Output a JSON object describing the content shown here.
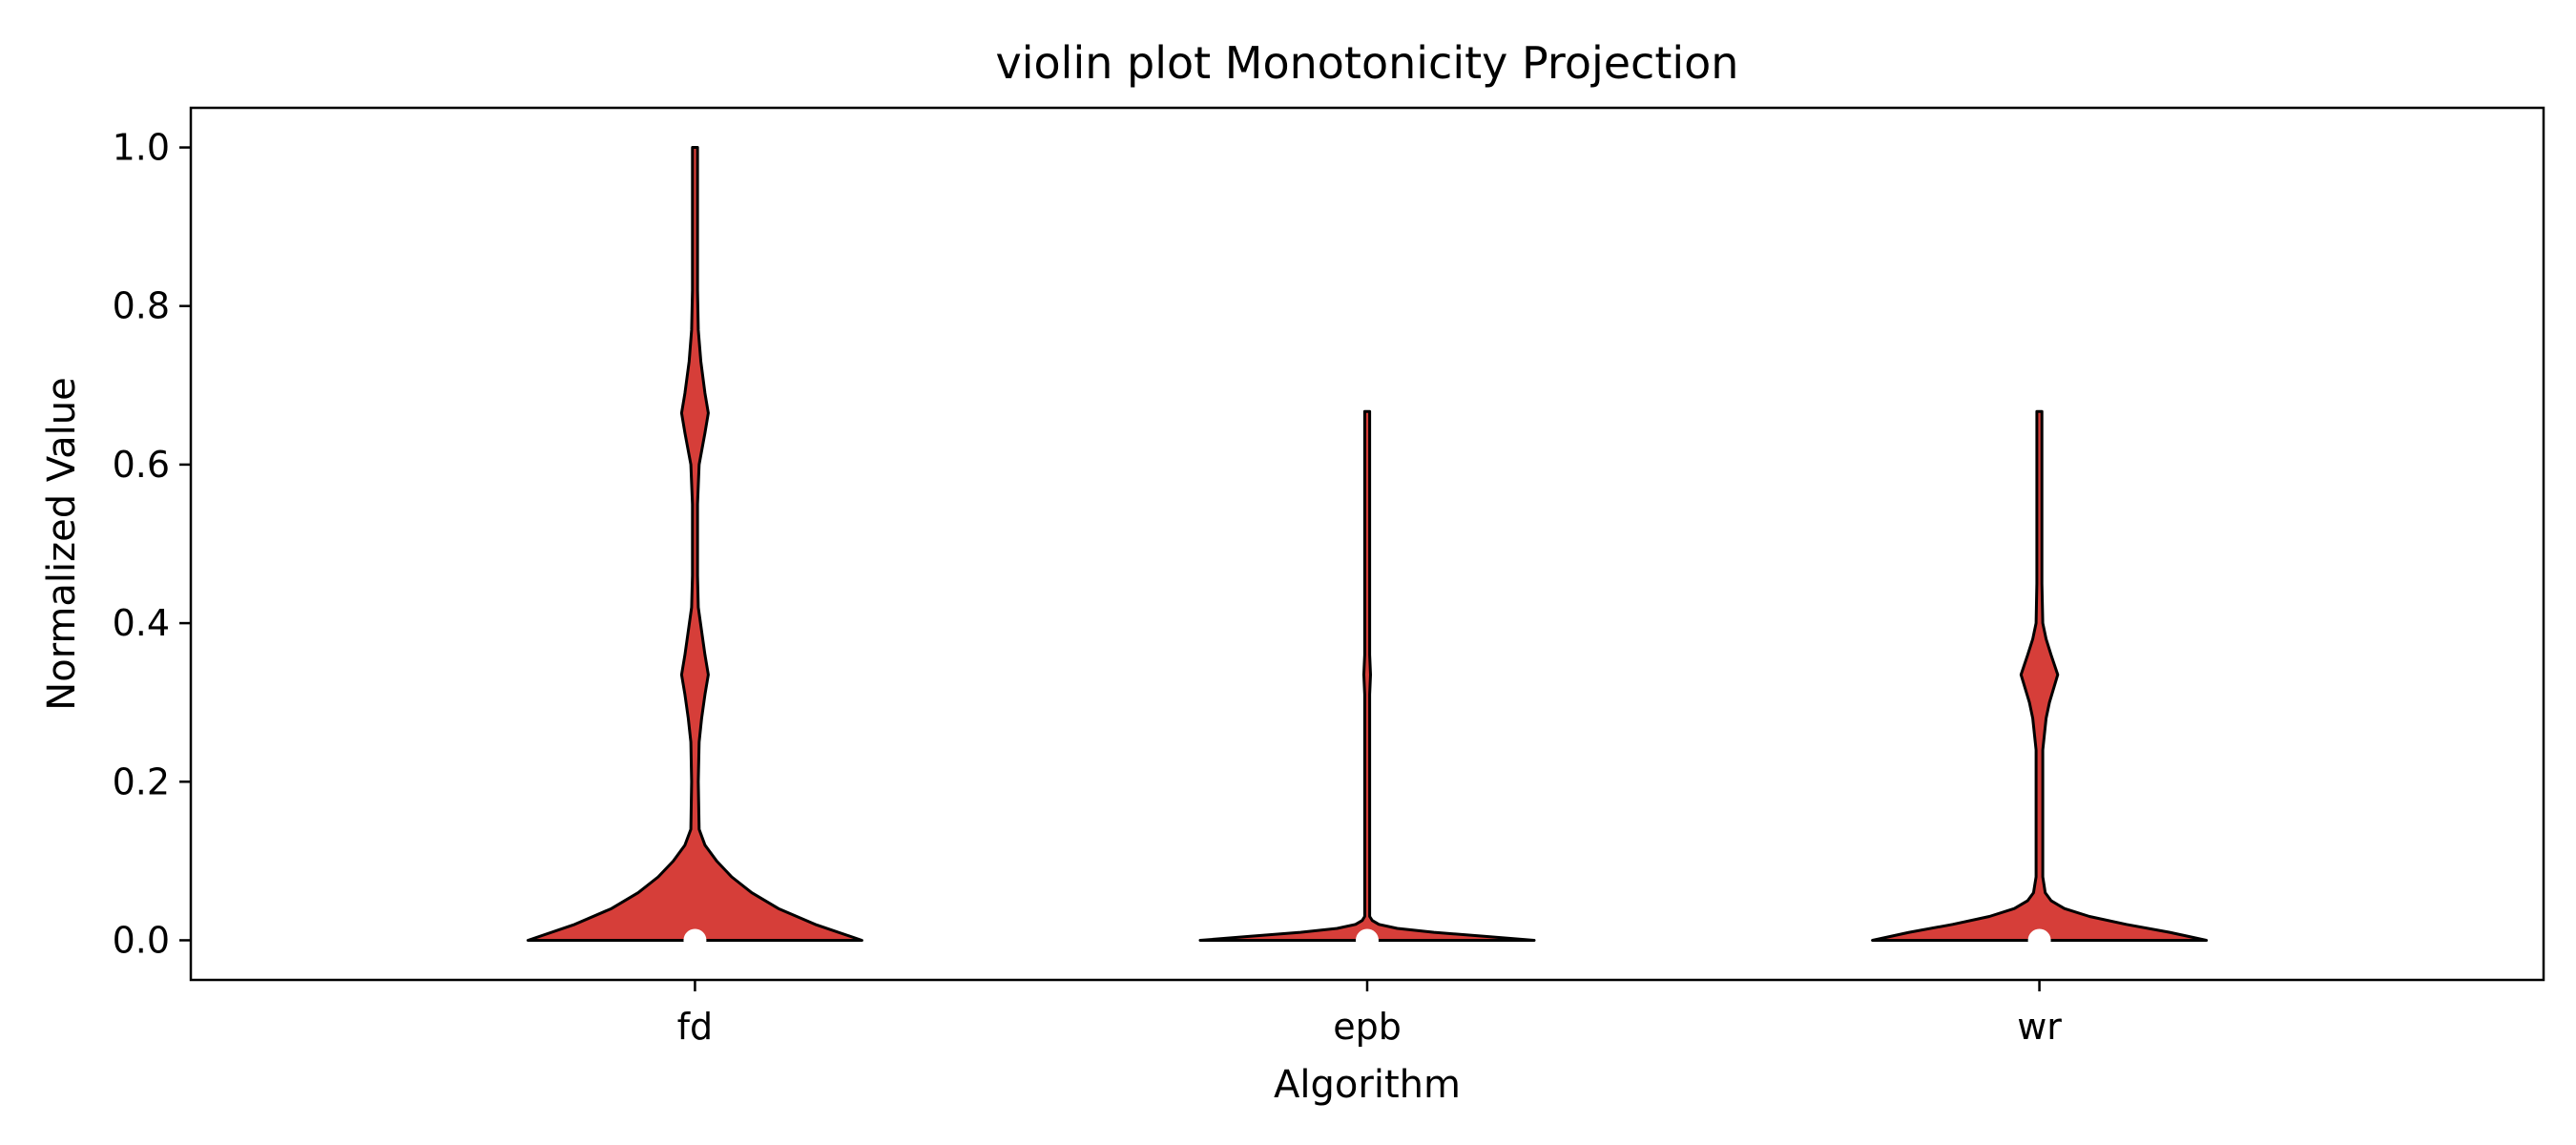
{
  "chart_data": {
    "type": "violin",
    "title": "violin plot Monotonicity Projection",
    "xlabel": "Algorithm",
    "ylabel": "Normalized Value",
    "categories": [
      "fd",
      "epb",
      "wr"
    ],
    "ylim": [
      -0.05,
      1.05
    ],
    "yticks": [
      0.0,
      0.2,
      0.4,
      0.6,
      0.8,
      1.0
    ],
    "ytick_labels": [
      "0.0",
      "0.2",
      "0.4",
      "0.6",
      "0.8",
      "1.0"
    ],
    "fill_color": "#d63e39",
    "edge_color": "#000000",
    "median_marker_color": "#ffffff",
    "grid": false,
    "violins": [
      {
        "category": "fd",
        "min": 0.0,
        "max": 1.0,
        "median": 0.0,
        "density": [
          [
            0.0,
            1.0
          ],
          [
            0.02,
            0.72
          ],
          [
            0.04,
            0.5
          ],
          [
            0.06,
            0.34
          ],
          [
            0.08,
            0.22
          ],
          [
            0.1,
            0.13
          ],
          [
            0.12,
            0.06
          ],
          [
            0.14,
            0.025
          ],
          [
            0.2,
            0.02
          ],
          [
            0.25,
            0.025
          ],
          [
            0.28,
            0.04
          ],
          [
            0.31,
            0.06
          ],
          [
            0.335,
            0.08
          ],
          [
            0.36,
            0.06
          ],
          [
            0.39,
            0.04
          ],
          [
            0.42,
            0.02
          ],
          [
            0.46,
            0.015
          ],
          [
            0.55,
            0.015
          ],
          [
            0.6,
            0.025
          ],
          [
            0.64,
            0.06
          ],
          [
            0.665,
            0.08
          ],
          [
            0.69,
            0.06
          ],
          [
            0.73,
            0.035
          ],
          [
            0.77,
            0.02
          ],
          [
            0.82,
            0.015
          ],
          [
            0.9,
            0.015
          ],
          [
            1.0,
            0.015
          ]
        ]
      },
      {
        "category": "epb",
        "min": 0.0,
        "max": 0.667,
        "median": 0.0,
        "density": [
          [
            0.0,
            1.0
          ],
          [
            0.005,
            0.7
          ],
          [
            0.01,
            0.4
          ],
          [
            0.015,
            0.18
          ],
          [
            0.02,
            0.07
          ],
          [
            0.025,
            0.03
          ],
          [
            0.03,
            0.015
          ],
          [
            0.05,
            0.015
          ],
          [
            0.31,
            0.015
          ],
          [
            0.335,
            0.02
          ],
          [
            0.36,
            0.015
          ],
          [
            0.667,
            0.015
          ]
        ]
      },
      {
        "category": "wr",
        "min": 0.0,
        "max": 0.667,
        "median": 0.0,
        "density": [
          [
            0.0,
            1.0
          ],
          [
            0.01,
            0.78
          ],
          [
            0.02,
            0.52
          ],
          [
            0.03,
            0.3
          ],
          [
            0.04,
            0.15
          ],
          [
            0.05,
            0.07
          ],
          [
            0.06,
            0.035
          ],
          [
            0.08,
            0.02
          ],
          [
            0.24,
            0.02
          ],
          [
            0.28,
            0.04
          ],
          [
            0.3,
            0.06
          ],
          [
            0.335,
            0.11
          ],
          [
            0.36,
            0.07
          ],
          [
            0.38,
            0.04
          ],
          [
            0.4,
            0.02
          ],
          [
            0.45,
            0.015
          ],
          [
            0.667,
            0.015
          ]
        ]
      }
    ]
  }
}
